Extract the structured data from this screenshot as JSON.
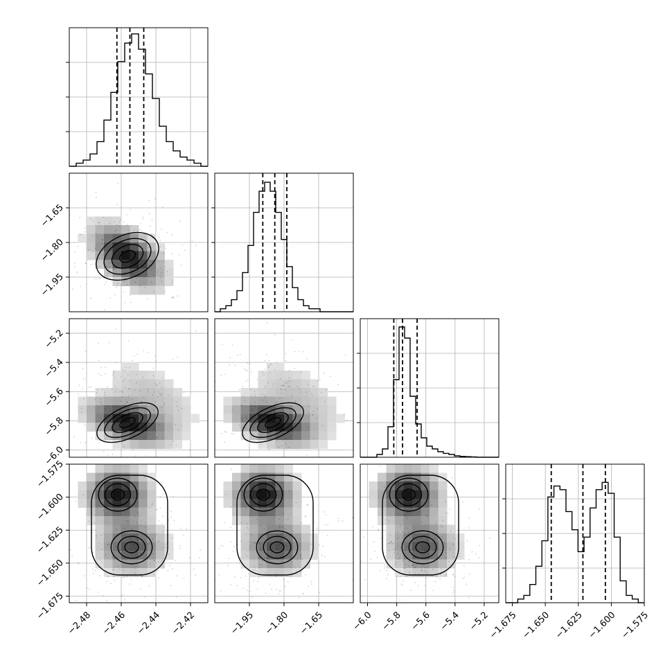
{
  "chart_data": {
    "type": "corner",
    "parameters": [
      {
        "range": [
          -2.49,
          -2.41
        ],
        "ticks": [
          -2.48,
          -2.46,
          -2.44,
          -2.42
        ],
        "tick_labels": [
          "−2.48",
          "−2.46",
          "−2.44",
          "−2.42"
        ],
        "quantiles": [
          -2.4625,
          -2.455,
          -2.447
        ]
      },
      {
        "range": [
          -2.1,
          -1.5
        ],
        "ticks": [
          -1.95,
          -1.8,
          -1.65
        ],
        "tick_labels": [
          "−1.95",
          "−1.80",
          "−1.65"
        ],
        "quantiles": [
          -1.892,
          -1.84,
          -1.788
        ]
      },
      {
        "range": [
          -6.05,
          -5.1
        ],
        "ticks": [
          -6.0,
          -5.8,
          -5.6,
          -5.4,
          -5.2
        ],
        "tick_labels": [
          "−6.0",
          "−5.8",
          "−5.6",
          "−5.4",
          "−5.2"
        ],
        "quantiles": [
          -5.82,
          -5.76,
          -5.66
        ]
      },
      {
        "range": [
          -1.68,
          -1.575
        ],
        "ticks": [
          -1.675,
          -1.65,
          -1.625,
          -1.6,
          -1.575
        ],
        "tick_labels": [
          "−1.675",
          "−1.650",
          "−1.625",
          "−1.600",
          "−1.575"
        ],
        "quantiles": [
          -1.6455,
          -1.6215,
          -1.6045
        ]
      }
    ],
    "row_tick_labels": [
      null,
      {
        "ticks": [
          -1.65,
          -1.8,
          -1.95
        ],
        "labels": [
          "−1.65",
          "−1.80",
          "−1.95"
        ]
      },
      {
        "ticks": [
          -5.2,
          -5.4,
          -5.6,
          -5.8,
          -6.0
        ],
        "labels": [
          "−5.2",
          "−5.4",
          "−5.6",
          "−5.8",
          "−6.0"
        ]
      },
      {
        "ticks": [
          -1.575,
          -1.6,
          -1.625,
          -1.65,
          -1.675
        ],
        "labels": [
          "−1.575",
          "−1.600",
          "−1.625",
          "−1.650",
          "−1.675"
        ]
      }
    ],
    "histograms": [
      {
        "param": 0,
        "counts": [
          0,
          1,
          2,
          4,
          8,
          15,
          24,
          34,
          40,
          43,
          38,
          30,
          22,
          13,
          8,
          5,
          3,
          2,
          1,
          0
        ],
        "ylim": [
          0,
          45
        ]
      },
      {
        "param": 1,
        "counts": [
          0,
          1,
          2,
          4,
          7,
          13,
          22,
          33,
          40,
          43,
          40,
          33,
          24,
          15,
          8,
          4,
          2,
          1,
          1,
          0,
          0,
          0,
          0,
          0,
          0
        ],
        "ylim": [
          0,
          46
        ]
      },
      {
        "param": 2,
        "counts": [
          0,
          0,
          0,
          1,
          3,
          11,
          28,
          47,
          43,
          22,
          12,
          7,
          4,
          3,
          2,
          1.4,
          1,
          0.5,
          0.3,
          0.2,
          0.1,
          0,
          0,
          0,
          0
        ],
        "ylim": [
          0,
          50
        ]
      },
      {
        "param": 3,
        "counts": [
          0,
          0,
          1,
          2,
          5,
          10,
          17,
          29,
          32,
          31,
          25,
          20,
          14,
          18,
          26,
          31,
          33,
          30,
          18,
          6,
          2,
          1,
          0
        ],
        "ylim": [
          0,
          38
        ]
      }
    ],
    "grid": true,
    "histogram_style": "step",
    "quantile_line_style": "dashed",
    "contour_style": "filled-density-with-black-contours",
    "colors": {
      "line": "#000000",
      "grid": "#b0b0b0",
      "frame": "#000000",
      "points": "#000000",
      "background": "#ffffff"
    }
  }
}
